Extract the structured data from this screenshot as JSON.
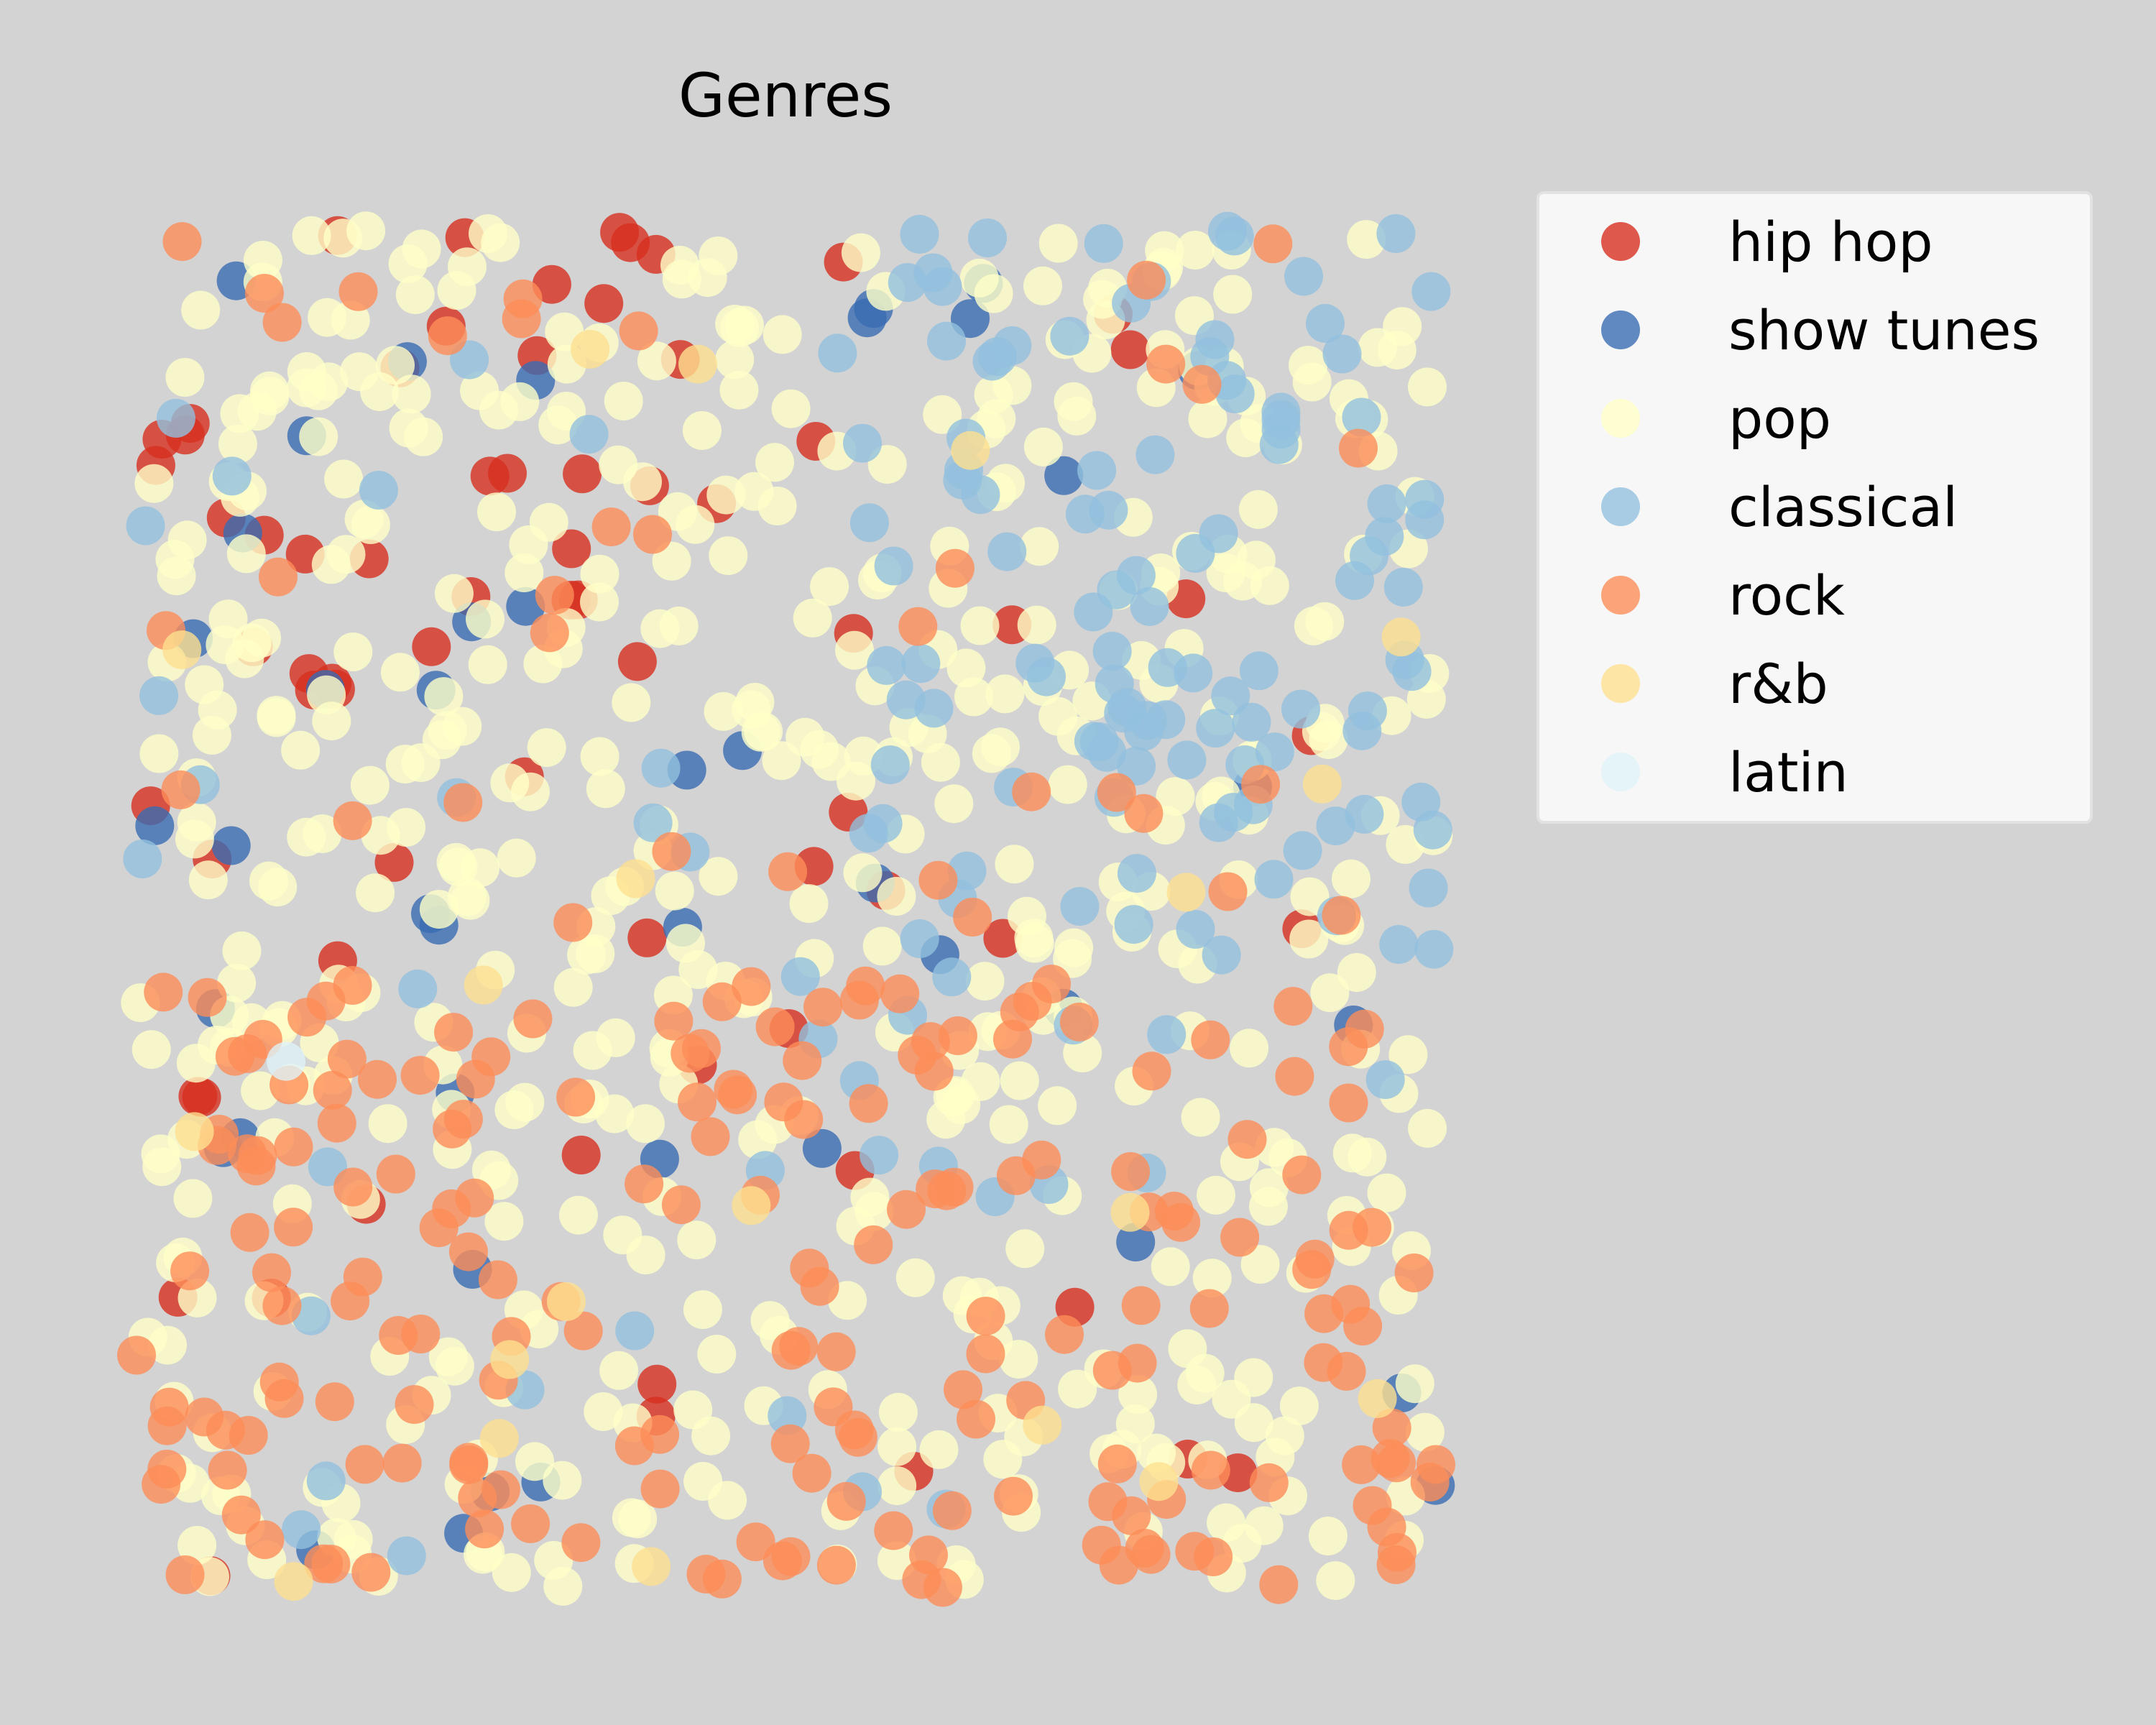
{
  "chart_data": {
    "type": "scatter",
    "title": "Genres",
    "xlabel": "",
    "ylabel": "",
    "axes_visible": false,
    "xlim": [
      0,
      100
    ],
    "ylim": [
      0,
      100
    ],
    "grid": false,
    "legend_position": "outside-right",
    "marker_alpha": 0.8,
    "series": [
      {
        "name": "hip hop",
        "color": "#d7301f",
        "count": 70,
        "seed": 11,
        "bias": "upper-left"
      },
      {
        "name": "show tunes",
        "color": "#3a6bb3",
        "count": 42,
        "seed": 23,
        "bias": "none"
      },
      {
        "name": "pop",
        "color": "#ffffc8",
        "count": 520,
        "seed": 37,
        "bias": "none"
      },
      {
        "name": "classical",
        "color": "#92c0df",
        "count": 150,
        "seed": 51,
        "bias": "right"
      },
      {
        "name": "rock",
        "color": "#fc8d59",
        "count": 230,
        "seed": 67,
        "bias": "bottom"
      },
      {
        "name": "r&b",
        "color": "#fee090",
        "count": 20,
        "seed": 79,
        "bias": "none"
      },
      {
        "name": "latin",
        "color": "#e0f3f8",
        "count": 1,
        "seed": 83,
        "bias": "none",
        "points": [
          [
            11.5,
            38.8
          ]
        ]
      }
    ]
  }
}
